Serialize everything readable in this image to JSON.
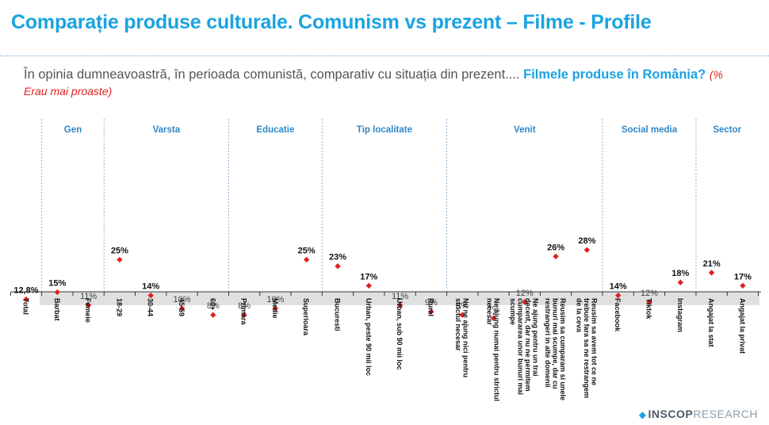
{
  "title": "Comparație produse culturale. Comunism vs prezent – Filme - Profile",
  "question": {
    "text": "În opinia dumneavoastră, în perioada comunistă, comparativ cu situația din prezent....",
    "highlight": "Filmele produse în România?",
    "note": "(% Erau mai proaste)"
  },
  "brand": {
    "bold": "INSCOP",
    "light": "RESEARCH",
    "icon": "inscop-logo-icon"
  },
  "colors": {
    "accent": "#1aa3e0",
    "marker": "#e02020",
    "band": "#e0e0e0"
  },
  "chart_data": {
    "type": "scatter",
    "ylim": [
      0,
      40
    ],
    "average": 12.8,
    "band": [
      11,
      15
    ],
    "groups": [
      {
        "label": "",
        "categories": [
          {
            "name": "Total",
            "value": 12.8,
            "label": "12,8%",
            "bold": true
          }
        ]
      },
      {
        "label": "Gen",
        "categories": [
          {
            "name": "Barbat",
            "value": 15,
            "label": "15%",
            "bold": true
          },
          {
            "name": "Femeie",
            "value": 11,
            "label": "11%",
            "bold": false
          }
        ]
      },
      {
        "label": "Varsta",
        "categories": [
          {
            "name": "18-29",
            "value": 25,
            "label": "25%",
            "bold": true
          },
          {
            "name": "30-44",
            "value": 14,
            "label": "14%",
            "bold": true
          },
          {
            "name": "45-59",
            "value": 10,
            "label": "10%",
            "bold": false
          },
          {
            "name": "60+",
            "value": 8,
            "label": "8%",
            "bold": false
          }
        ]
      },
      {
        "label": "Educatie",
        "categories": [
          {
            "name": "Primara",
            "value": 8,
            "label": "8%",
            "bold": false
          },
          {
            "name": "Medie",
            "value": 10,
            "label": "10%",
            "bold": false
          },
          {
            "name": "Superioara",
            "value": 25,
            "label": "25%",
            "bold": true
          }
        ]
      },
      {
        "label": "Tip localitate",
        "categories": [
          {
            "name": "Bucuresti",
            "value": 23,
            "label": "23%",
            "bold": true
          },
          {
            "name": "Urban, peste 90 mii loc",
            "value": 17,
            "label": "17%",
            "bold": true
          },
          {
            "name": "Urban, sub 90 mii loc",
            "value": 11,
            "label": "11%",
            "bold": false
          },
          {
            "name": "Rural",
            "value": 9,
            "label": "9%",
            "bold": false
          }
        ]
      },
      {
        "label": "Venit",
        "categories": [
          {
            "name": "Nu ne ajung nici pentru strictul necesar",
            "value": 8,
            "label": "8%",
            "bold": false
          },
          {
            "name": "Ne ajung numai pentru strictul necesar",
            "value": 7,
            "label": "7%",
            "bold": false
          },
          {
            "name": "Ne ajung pentru un trai decent, dar nu ne permitem cumpararea unor bunuri mai scumpe",
            "value": 12,
            "label": "12%",
            "bold": false
          },
          {
            "name": "Reusim sa cumparam si unele bunuri mai scumpe, dar cu restrangeri in alte domenii",
            "value": 26,
            "label": "26%",
            "bold": true
          },
          {
            "name": "Reusim sa avem tot ce ne trebuie fara sa ne restrangem de la ceva",
            "value": 28,
            "label": "28%",
            "bold": true
          }
        ]
      },
      {
        "label": "Social media",
        "categories": [
          {
            "name": "Facebook",
            "value": 14,
            "label": "14%",
            "bold": true
          },
          {
            "name": "Tiktok",
            "value": 12,
            "label": "12%",
            "bold": false
          },
          {
            "name": "Instagram",
            "value": 18,
            "label": "18%",
            "bold": true
          }
        ]
      },
      {
        "label": "Sector",
        "categories": [
          {
            "name": "Angajat la stat",
            "value": 21,
            "label": "21%",
            "bold": true
          },
          {
            "name": "Angajat la privat",
            "value": 17,
            "label": "17%",
            "bold": true
          }
        ]
      }
    ]
  }
}
